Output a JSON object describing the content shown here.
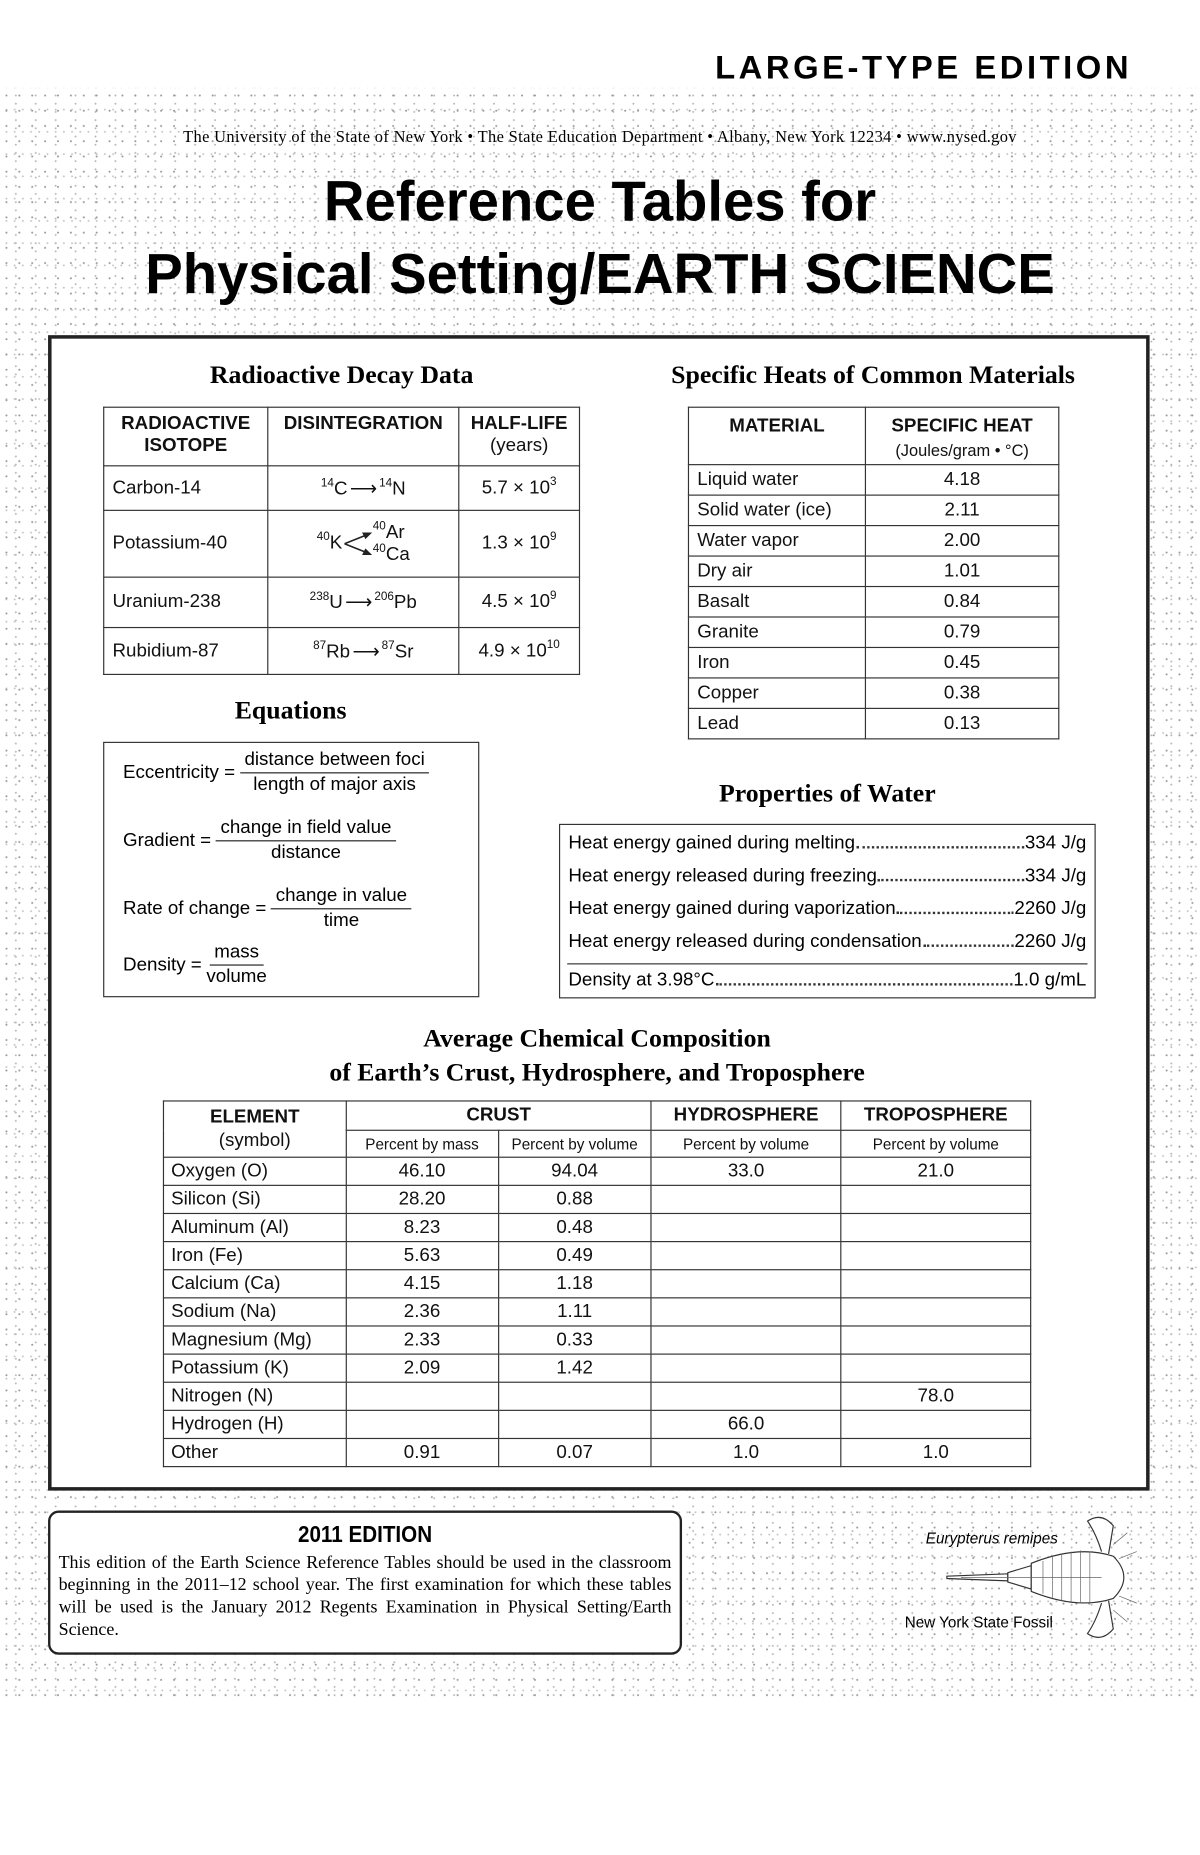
{
  "header": {
    "edition_badge": "LARGE-TYPE EDITION",
    "agency_line": "The University of the State of New York • The State Education Department • Albany, New York 12234 • www.nysed.gov",
    "title_line1": "Reference Tables for",
    "title_line2": "Physical Setting/EARTH SCIENCE"
  },
  "radioactive_decay": {
    "heading": "Radioactive Decay Data",
    "columns": {
      "isotope_1": "RADIOACTIVE",
      "isotope_2": "ISOTOPE",
      "disintegration": "DISINTEGRATION",
      "halflife_1": "HALF-LIFE",
      "halflife_2": "(years)"
    },
    "rows": [
      {
        "isotope": "Carbon-14",
        "parent_mass": "14",
        "parent": "C",
        "daughter_mass": "14",
        "daughter": "N",
        "halflife_base": "5.7 × 10",
        "halflife_exp": "3"
      },
      {
        "isotope": "Potassium-40",
        "parent_mass": "40",
        "parent": "K",
        "daughter_mass": "40",
        "daughter": "Ar",
        "daughter2_mass": "40",
        "daughter2": "Ca",
        "halflife_base": "1.3 × 10",
        "halflife_exp": "9"
      },
      {
        "isotope": "Uranium-238",
        "parent_mass": "238",
        "parent": "U",
        "daughter_mass": "206",
        "daughter": "Pb",
        "halflife_base": "4.5 × 10",
        "halflife_exp": "9"
      },
      {
        "isotope": "Rubidium-87",
        "parent_mass": "87",
        "parent": "Rb",
        "daughter_mass": "87",
        "daughter": "Sr",
        "halflife_base": "4.9 × 10",
        "halflife_exp": "10"
      }
    ]
  },
  "specific_heats": {
    "heading": "Specific Heats of Common Materials",
    "columns": {
      "material": "MATERIAL",
      "heat": "SPECIFIC HEAT",
      "unit": "(Joules/gram • °C)"
    },
    "rows": [
      {
        "material": "Liquid water",
        "value": "4.18"
      },
      {
        "material": "Solid water (ice)",
        "value": "2.11"
      },
      {
        "material": "Water vapor",
        "value": "2.00"
      },
      {
        "material": "Dry air",
        "value": "1.01"
      },
      {
        "material": "Basalt",
        "value": "0.84"
      },
      {
        "material": "Granite",
        "value": "0.79"
      },
      {
        "material": "Iron",
        "value": "0.45"
      },
      {
        "material": "Copper",
        "value": "0.38"
      },
      {
        "material": "Lead",
        "value": "0.13"
      }
    ]
  },
  "equations": {
    "heading": "Equations",
    "items": [
      {
        "name": "Eccentricity =",
        "numerator": "distance between foci",
        "denominator": "length of major axis"
      },
      {
        "name": "Gradient =",
        "numerator": "change in field value",
        "denominator": "distance"
      },
      {
        "name": "Rate of change =",
        "numerator": "change in value",
        "denominator": "time"
      },
      {
        "name": "Density =",
        "numerator": "mass",
        "denominator": "volume"
      }
    ]
  },
  "water": {
    "heading": "Properties of Water",
    "rows": [
      {
        "label": "Heat energy gained during melting",
        "value": "334 J/g"
      },
      {
        "label": "Heat energy released during freezing",
        "value": "334 J/g"
      },
      {
        "label": "Heat energy gained during vaporization",
        "value": "2260 J/g"
      },
      {
        "label": "Heat energy released during condensation",
        "value": "2260 J/g"
      },
      {
        "label": "Density at 3.98°C",
        "value": "1.0 g/mL"
      }
    ]
  },
  "composition": {
    "heading_line1": "Average Chemical Composition",
    "heading_line2": "of Earth’s Crust, Hydrosphere, and Troposphere",
    "columns": {
      "element": "ELEMENT",
      "symbol": "(symbol)",
      "crust": "CRUST",
      "hydro": "HYDROSPHERE",
      "tropo": "TROPOSPHERE",
      "crust_mass": "Percent by mass",
      "crust_vol": "Percent by volume",
      "hydro_vol": "Percent by volume",
      "tropo_vol": "Percent by volume"
    },
    "rows": [
      {
        "element": "Oxygen (O)",
        "crust_mass": "46.10",
        "crust_vol": "94.04",
        "hydro": "33.0",
        "tropo": "21.0"
      },
      {
        "element": "Silicon (Si)",
        "crust_mass": "28.20",
        "crust_vol": "0.88",
        "hydro": "",
        "tropo": ""
      },
      {
        "element": "Aluminum (Al)",
        "crust_mass": "8.23",
        "crust_vol": "0.48",
        "hydro": "",
        "tropo": ""
      },
      {
        "element": "Iron (Fe)",
        "crust_mass": "5.63",
        "crust_vol": "0.49",
        "hydro": "",
        "tropo": ""
      },
      {
        "element": "Calcium (Ca)",
        "crust_mass": "4.15",
        "crust_vol": "1.18",
        "hydro": "",
        "tropo": ""
      },
      {
        "element": "Sodium (Na)",
        "crust_mass": "2.36",
        "crust_vol": "1.11",
        "hydro": "",
        "tropo": ""
      },
      {
        "element": "Magnesium (Mg)",
        "crust_mass": "2.33",
        "crust_vol": "0.33",
        "hydro": "",
        "tropo": ""
      },
      {
        "element": "Potassium (K)",
        "crust_mass": "2.09",
        "crust_vol": "1.42",
        "hydro": "",
        "tropo": ""
      },
      {
        "element": "Nitrogen (N)",
        "crust_mass": "",
        "crust_vol": "",
        "hydro": "",
        "tropo": "78.0"
      },
      {
        "element": "Hydrogen (H)",
        "crust_mass": "",
        "crust_vol": "",
        "hydro": "66.0",
        "tropo": ""
      },
      {
        "element": "Other",
        "crust_mass": "0.91",
        "crust_vol": "0.07",
        "hydro": "1.0",
        "tropo": "1.0"
      }
    ]
  },
  "edition": {
    "title": "2011 EDITION",
    "text": "This edition of the Earth Science Reference Tables should be used in the classroom beginning in the 2011–12 school year. The first examination for which these tables will be used is the January 2012 Regents Examination in Physical Setting/Earth Science."
  },
  "fossil": {
    "species": "Eurypterus remipes",
    "caption": "New York State Fossil",
    "icon": "eurypterid-illustration"
  }
}
